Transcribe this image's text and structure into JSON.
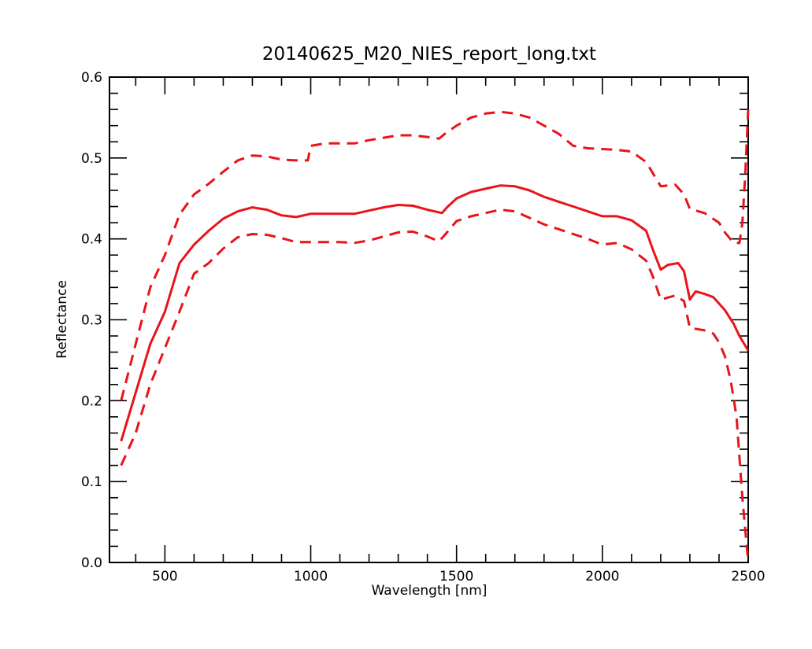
{
  "chart_data": {
    "type": "line",
    "title": "20140625_M20_NIES_report_long.txt",
    "xlabel": "Wavelength [nm]",
    "ylabel": "Reflectance",
    "xlim": [
      310,
      2500
    ],
    "ylim": [
      0.0,
      0.6
    ],
    "x_major_ticks": [
      500,
      1000,
      1500,
      2000,
      2500
    ],
    "x_tick_labels": [
      "500",
      "1000",
      "1500",
      "2000",
      "2500"
    ],
    "y_major_ticks": [
      0.0,
      0.1,
      0.2,
      0.3,
      0.4,
      0.5,
      0.6
    ],
    "y_tick_labels": [
      "0.0",
      "0.1",
      "0.2",
      "0.3",
      "0.4",
      "0.5",
      "0.6"
    ],
    "grid": false,
    "legend": "none",
    "line_color": "#e8141a",
    "series": [
      {
        "style": "dashed",
        "points": [
          [
            350,
            0.2
          ],
          [
            400,
            0.27
          ],
          [
            450,
            0.34
          ],
          [
            500,
            0.38
          ],
          [
            550,
            0.43
          ],
          [
            600,
            0.455
          ],
          [
            650,
            0.468
          ],
          [
            700,
            0.483
          ],
          [
            750,
            0.497
          ],
          [
            800,
            0.503
          ],
          [
            850,
            0.502
          ],
          [
            900,
            0.498
          ],
          [
            950,
            0.497
          ],
          [
            990,
            0.497
          ],
          [
            1000,
            0.515
          ],
          [
            1050,
            0.518
          ],
          [
            1100,
            0.518
          ],
          [
            1150,
            0.518
          ],
          [
            1200,
            0.522
          ],
          [
            1250,
            0.525
          ],
          [
            1300,
            0.528
          ],
          [
            1350,
            0.528
          ],
          [
            1400,
            0.526
          ],
          [
            1440,
            0.524
          ],
          [
            1460,
            0.53
          ],
          [
            1500,
            0.54
          ],
          [
            1550,
            0.55
          ],
          [
            1600,
            0.555
          ],
          [
            1650,
            0.557
          ],
          [
            1700,
            0.555
          ],
          [
            1750,
            0.55
          ],
          [
            1800,
            0.54
          ],
          [
            1850,
            0.53
          ],
          [
            1900,
            0.515
          ],
          [
            1950,
            0.512
          ],
          [
            2000,
            0.511
          ],
          [
            2050,
            0.51
          ],
          [
            2100,
            0.508
          ],
          [
            2150,
            0.495
          ],
          [
            2200,
            0.465
          ],
          [
            2250,
            0.467
          ],
          [
            2280,
            0.455
          ],
          [
            2300,
            0.437
          ],
          [
            2350,
            0.432
          ],
          [
            2400,
            0.42
          ],
          [
            2420,
            0.408
          ],
          [
            2450,
            0.395
          ],
          [
            2470,
            0.395
          ],
          [
            2480,
            0.42
          ],
          [
            2490,
            0.48
          ],
          [
            2500,
            0.56
          ]
        ]
      },
      {
        "style": "solid",
        "points": [
          [
            350,
            0.15
          ],
          [
            400,
            0.21
          ],
          [
            450,
            0.27
          ],
          [
            500,
            0.31
          ],
          [
            550,
            0.37
          ],
          [
            600,
            0.393
          ],
          [
            650,
            0.41
          ],
          [
            700,
            0.425
          ],
          [
            750,
            0.434
          ],
          [
            800,
            0.439
          ],
          [
            850,
            0.436
          ],
          [
            900,
            0.429
          ],
          [
            950,
            0.427
          ],
          [
            1000,
            0.431
          ],
          [
            1050,
            0.431
          ],
          [
            1100,
            0.431
          ],
          [
            1150,
            0.431
          ],
          [
            1200,
            0.435
          ],
          [
            1250,
            0.439
          ],
          [
            1300,
            0.442
          ],
          [
            1350,
            0.441
          ],
          [
            1400,
            0.436
          ],
          [
            1450,
            0.432
          ],
          [
            1470,
            0.44
          ],
          [
            1500,
            0.45
          ],
          [
            1550,
            0.458
          ],
          [
            1600,
            0.462
          ],
          [
            1650,
            0.466
          ],
          [
            1700,
            0.465
          ],
          [
            1750,
            0.46
          ],
          [
            1800,
            0.452
          ],
          [
            1850,
            0.446
          ],
          [
            1900,
            0.44
          ],
          [
            1950,
            0.434
          ],
          [
            2000,
            0.428
          ],
          [
            2050,
            0.428
          ],
          [
            2100,
            0.423
          ],
          [
            2150,
            0.41
          ],
          [
            2175,
            0.385
          ],
          [
            2200,
            0.362
          ],
          [
            2225,
            0.368
          ],
          [
            2260,
            0.37
          ],
          [
            2280,
            0.36
          ],
          [
            2300,
            0.325
          ],
          [
            2320,
            0.335
          ],
          [
            2350,
            0.332
          ],
          [
            2380,
            0.328
          ],
          [
            2400,
            0.32
          ],
          [
            2420,
            0.312
          ],
          [
            2450,
            0.295
          ],
          [
            2470,
            0.28
          ],
          [
            2500,
            0.262
          ]
        ]
      },
      {
        "style": "dashed",
        "points": [
          [
            350,
            0.12
          ],
          [
            400,
            0.16
          ],
          [
            450,
            0.22
          ],
          [
            500,
            0.265
          ],
          [
            550,
            0.31
          ],
          [
            600,
            0.357
          ],
          [
            650,
            0.37
          ],
          [
            700,
            0.388
          ],
          [
            750,
            0.402
          ],
          [
            800,
            0.406
          ],
          [
            850,
            0.405
          ],
          [
            900,
            0.401
          ],
          [
            950,
            0.396
          ],
          [
            1000,
            0.396
          ],
          [
            1050,
            0.396
          ],
          [
            1100,
            0.396
          ],
          [
            1150,
            0.395
          ],
          [
            1200,
            0.398
          ],
          [
            1250,
            0.403
          ],
          [
            1300,
            0.408
          ],
          [
            1350,
            0.409
          ],
          [
            1400,
            0.403
          ],
          [
            1440,
            0.397
          ],
          [
            1460,
            0.405
          ],
          [
            1500,
            0.422
          ],
          [
            1550,
            0.428
          ],
          [
            1600,
            0.432
          ],
          [
            1650,
            0.436
          ],
          [
            1700,
            0.434
          ],
          [
            1750,
            0.426
          ],
          [
            1800,
            0.418
          ],
          [
            1850,
            0.412
          ],
          [
            1900,
            0.406
          ],
          [
            1950,
            0.4
          ],
          [
            2000,
            0.393
          ],
          [
            2050,
            0.395
          ],
          [
            2100,
            0.387
          ],
          [
            2150,
            0.373
          ],
          [
            2175,
            0.352
          ],
          [
            2200,
            0.325
          ],
          [
            2250,
            0.33
          ],
          [
            2280,
            0.323
          ],
          [
            2300,
            0.29
          ],
          [
            2350,
            0.287
          ],
          [
            2380,
            0.283
          ],
          [
            2400,
            0.272
          ],
          [
            2420,
            0.255
          ],
          [
            2440,
            0.225
          ],
          [
            2460,
            0.18
          ],
          [
            2480,
            0.08
          ],
          [
            2500,
            0.0
          ]
        ]
      }
    ]
  }
}
